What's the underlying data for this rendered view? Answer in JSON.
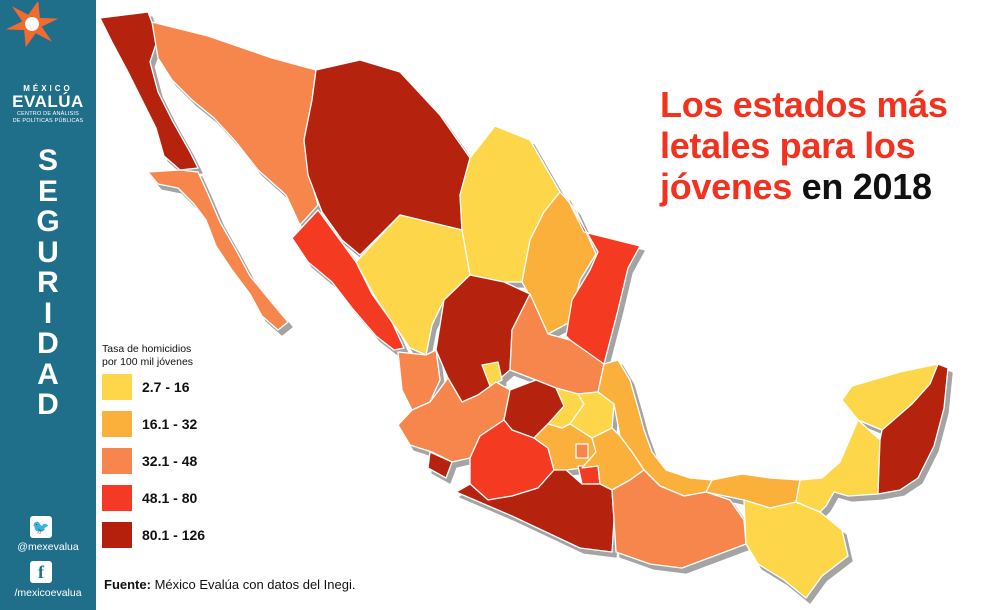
{
  "brand": {
    "country": "MÉXICO",
    "name": "EVALÚA",
    "subtitle_line1": "CENTRO DE ANÁLISIS",
    "subtitle_line2": "DE POLÍTICAS PÚBLICAS",
    "section": "SEGURIDAD",
    "colors": {
      "sidebar": "#1f6f8b",
      "logo_orange": "#f26a2e"
    }
  },
  "social": {
    "twitter": {
      "icon": "twitter-icon",
      "handle": "@mexevalua"
    },
    "facebook": {
      "icon": "facebook-icon",
      "handle": "/mexicoevalua"
    }
  },
  "title": {
    "part1": "Los estados más letales para los jóvenes",
    "part2": "en 2018",
    "highlight_color": "#f2311e"
  },
  "legend": {
    "title": "Tasa de homicidios\npor 100 mil jóvenes",
    "items": [
      {
        "label": "2.7 - 16",
        "color": "#fdd64a"
      },
      {
        "label": "16.1 - 32",
        "color": "#fbb03b"
      },
      {
        "label": "32.1 - 48",
        "color": "#f7864e"
      },
      {
        "label": "48.1 - 80",
        "color": "#f43a24"
      },
      {
        "label": "80.1 - 126",
        "color": "#b5200c"
      }
    ]
  },
  "source": {
    "label": "Fuente:",
    "text": "México Evalúa con datos del Inegi."
  }
}
